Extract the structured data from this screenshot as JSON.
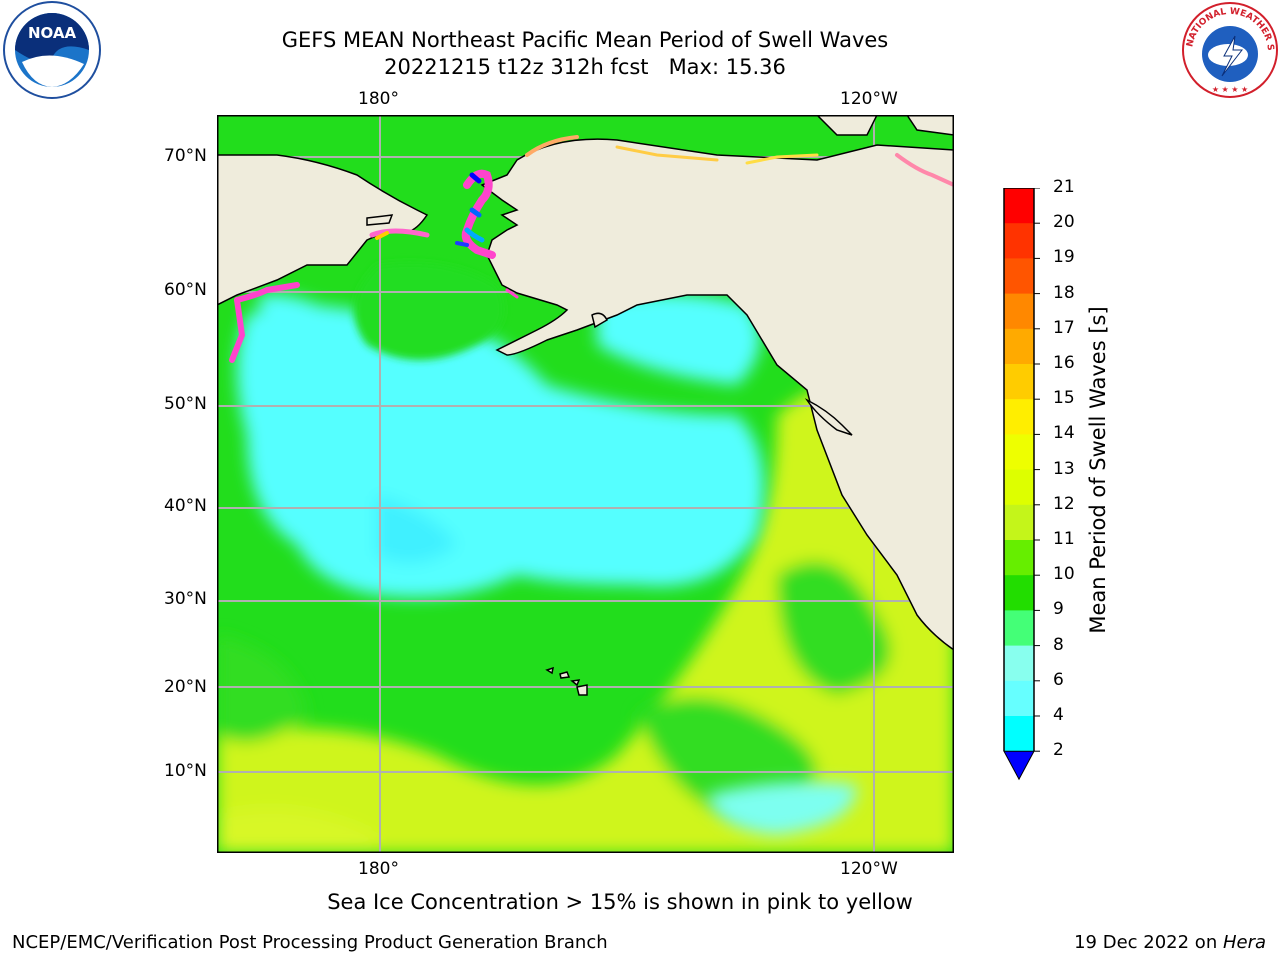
{
  "header": {
    "title_line1": "GEFS MEAN Northeast Pacific Mean Period of Swell Waves",
    "title_line2": "20221215 t12z 312h fcst   Max: 15.36"
  },
  "logos": {
    "left": {
      "name": "noaa-logo",
      "text": "NOAA",
      "ring_text": "NATIONAL OCEANIC AND ATMOSPHERIC ADMINISTRATION · U.S. DEPARTMENT OF COMMERCE"
    },
    "right": {
      "name": "nws-logo",
      "ring_text": "NATIONAL WEATHER SERVICE"
    }
  },
  "map": {
    "lon_labels_top": [
      "180°",
      "120°W"
    ],
    "lon_labels_bottom": [
      "180°",
      "120°W"
    ],
    "lat_labels": [
      "70°N",
      "60°N",
      "50°N",
      "40°N",
      "30°N",
      "20°N",
      "10°N"
    ],
    "colors": {
      "land": "#efecdc",
      "ocean_low": "#3fffff",
      "ocean_mid": "#19e61c",
      "ocean_high": "#d7f51a",
      "ice": "#ff66cc",
      "grid": "#b0b0b0"
    }
  },
  "colorbar": {
    "label": "Mean Period of Swell Waves [s]",
    "ticks": [
      "21",
      "20",
      "19",
      "18",
      "17",
      "16",
      "15",
      "14",
      "13",
      "12",
      "11",
      "10",
      "9",
      "8",
      "6",
      "4",
      "2"
    ],
    "colors": [
      "#ff0000",
      "#ff3300",
      "#ff5500",
      "#ff8800",
      "#ffaa00",
      "#ffcc00",
      "#ffee00",
      "#eeff00",
      "#ddff00",
      "#c4f51a",
      "#66ee00",
      "#22dd00",
      "#44ff77",
      "#88ffee",
      "#66ffff",
      "#00ffff",
      "#00e8ff",
      "#0088ff"
    ],
    "extend_color": "#0000ff"
  },
  "footer": {
    "note": "Sea Ice Concentration > 15% is shown in pink to yellow",
    "credit": "NCEP/EMC/Verification Post Processing Product Generation Branch",
    "date": "19 Dec 2022 on ",
    "host": "Hera"
  }
}
